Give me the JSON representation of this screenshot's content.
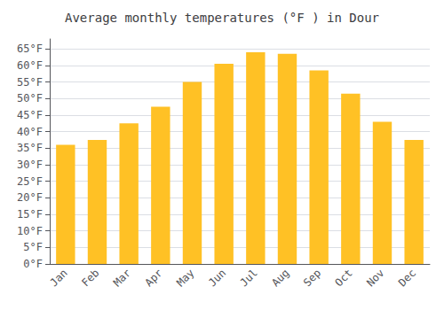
{
  "chart_data": {
    "type": "bar",
    "title": "Average monthly temperatures (°F ) in Dour",
    "categories": [
      "Jan",
      "Feb",
      "Mar",
      "Apr",
      "May",
      "Jun",
      "Jul",
      "Aug",
      "Sep",
      "Oct",
      "Nov",
      "Dec"
    ],
    "values": [
      36,
      37.5,
      42.5,
      47.5,
      55,
      60.5,
      64,
      63.5,
      58.5,
      51.5,
      43,
      37.5
    ],
    "color": "#FFC125",
    "ylim": [
      0,
      68
    ],
    "yticks": [
      {
        "value": 0,
        "label": "0°F"
      },
      {
        "value": 5,
        "label": "5°F"
      },
      {
        "value": 10,
        "label": "10°F"
      },
      {
        "value": 15,
        "label": "15°F"
      },
      {
        "value": 20,
        "label": "20°F"
      },
      {
        "value": 25,
        "label": "25°F"
      },
      {
        "value": 30,
        "label": "30°F"
      },
      {
        "value": 35,
        "label": "35°F"
      },
      {
        "value": 40,
        "label": "40°F"
      },
      {
        "value": 45,
        "label": "45°F"
      },
      {
        "value": 50,
        "label": "50°F"
      },
      {
        "value": 55,
        "label": "55°F"
      },
      {
        "value": 60,
        "label": "60°F"
      },
      {
        "value": 65,
        "label": "65°F"
      }
    ],
    "grid": true
  }
}
